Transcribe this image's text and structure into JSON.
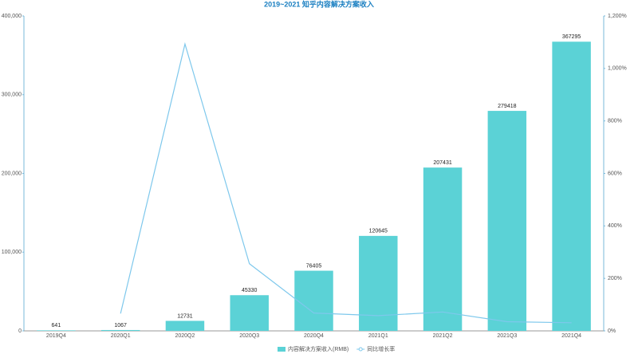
{
  "chart_data": {
    "type": "bar-line",
    "title": "2019~2021 知乎内容解决方案收入",
    "categories": [
      "2019Q4",
      "2020Q1",
      "2020Q2",
      "2020Q3",
      "2020Q4",
      "2021Q1",
      "2021Q2",
      "2021Q3",
      "2021Q4"
    ],
    "series": [
      {
        "name": "内容解决方案收入(RMB)",
        "color": "#5bd2d6",
        "type": "bar",
        "values": [
          641,
          1067,
          12731,
          45330,
          76405,
          120645,
          207431,
          279418,
          367295
        ]
      },
      {
        "name": "同比增长率",
        "color": "#7ec8ec",
        "type": "line",
        "axis": "y2",
        "values": [
          null,
          66,
          1093,
          256,
          68,
          58,
          72,
          35,
          31
        ]
      }
    ],
    "ylim": [
      0,
      400000
    ],
    "yticks": [
      0,
      {
        "value": 100000,
        "label": "100,000"
      },
      {
        "value": 200000,
        "label": "200,000"
      },
      {
        "value": 300000,
        "label": "300,000"
      },
      {
        "value": 400000,
        "label": "400,000"
      }
    ],
    "y2lim": [
      0,
      1200
    ],
    "y2ticks": [
      {
        "value": 0,
        "label": "0%"
      },
      {
        "value": 200,
        "label": "200%"
      },
      {
        "value": 400,
        "label": "400%"
      },
      {
        "value": 600,
        "label": "600%"
      },
      {
        "value": 800,
        "label": "800%"
      },
      {
        "value": 1000,
        "label": "1,000%"
      },
      {
        "value": 1200,
        "label": "1,200%"
      }
    ],
    "grid": false
  }
}
